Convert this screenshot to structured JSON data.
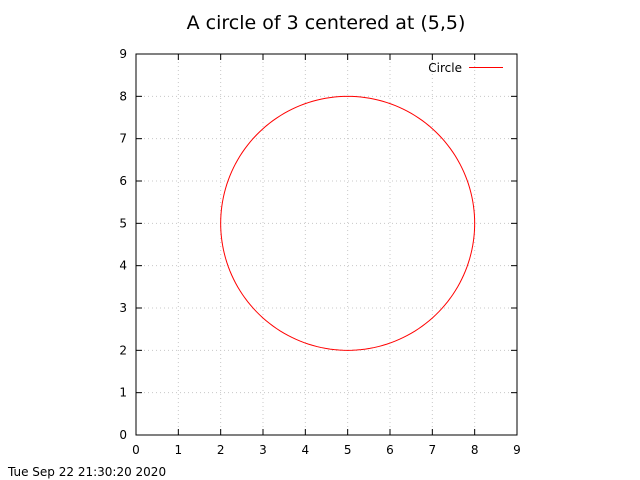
{
  "chart_data": {
    "type": "line",
    "title": "A circle of 3 centered at (5,5)",
    "xlabel": "",
    "ylabel": "",
    "xlim": [
      0,
      9
    ],
    "ylim": [
      0,
      9
    ],
    "x_ticks": [
      "0",
      "1",
      "2",
      "3",
      "4",
      "5",
      "6",
      "7",
      "8",
      "9"
    ],
    "y_ticks": [
      "0",
      "1",
      "2",
      "3",
      "4",
      "5",
      "6",
      "7",
      "8",
      "9"
    ],
    "grid": true,
    "legend_position": "top-right",
    "series": [
      {
        "name": "Circle",
        "color": "#ff0000",
        "shape": "circle",
        "center": [
          5,
          5
        ],
        "radius": 3
      }
    ]
  },
  "footer": {
    "timestamp": "Tue Sep 22 21:30:20 2020"
  }
}
